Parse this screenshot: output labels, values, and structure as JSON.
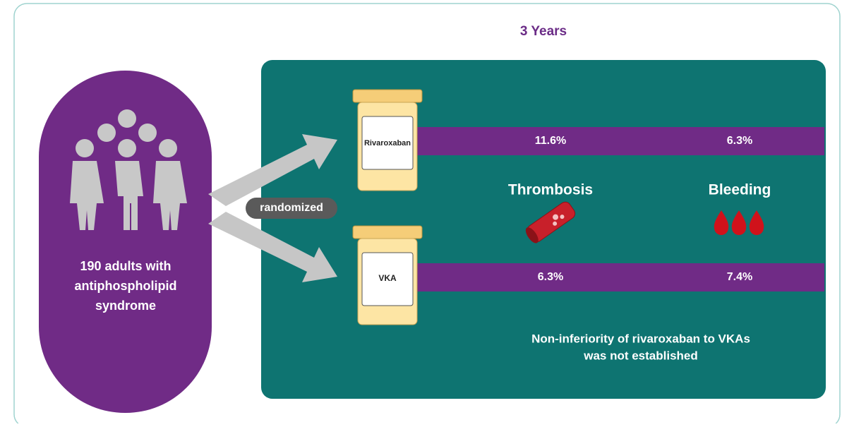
{
  "title": "3 Years",
  "population": {
    "lines": [
      "190 adults with",
      "antiphospholipid",
      "syndrome"
    ]
  },
  "randomized": "randomized",
  "arms": [
    {
      "label": "Rivaroxaban",
      "thrombosis": "11.6%",
      "bleeding": "6.3%"
    },
    {
      "label": "VKA",
      "thrombosis": "6.3%",
      "bleeding": "7.4%"
    }
  ],
  "outcomes": {
    "thrombosis": "Thrombosis",
    "bleeding": "Bleeding"
  },
  "conclusion": [
    "Non-inferiority of rivaroxaban to VKAs",
    "was not established"
  ]
}
